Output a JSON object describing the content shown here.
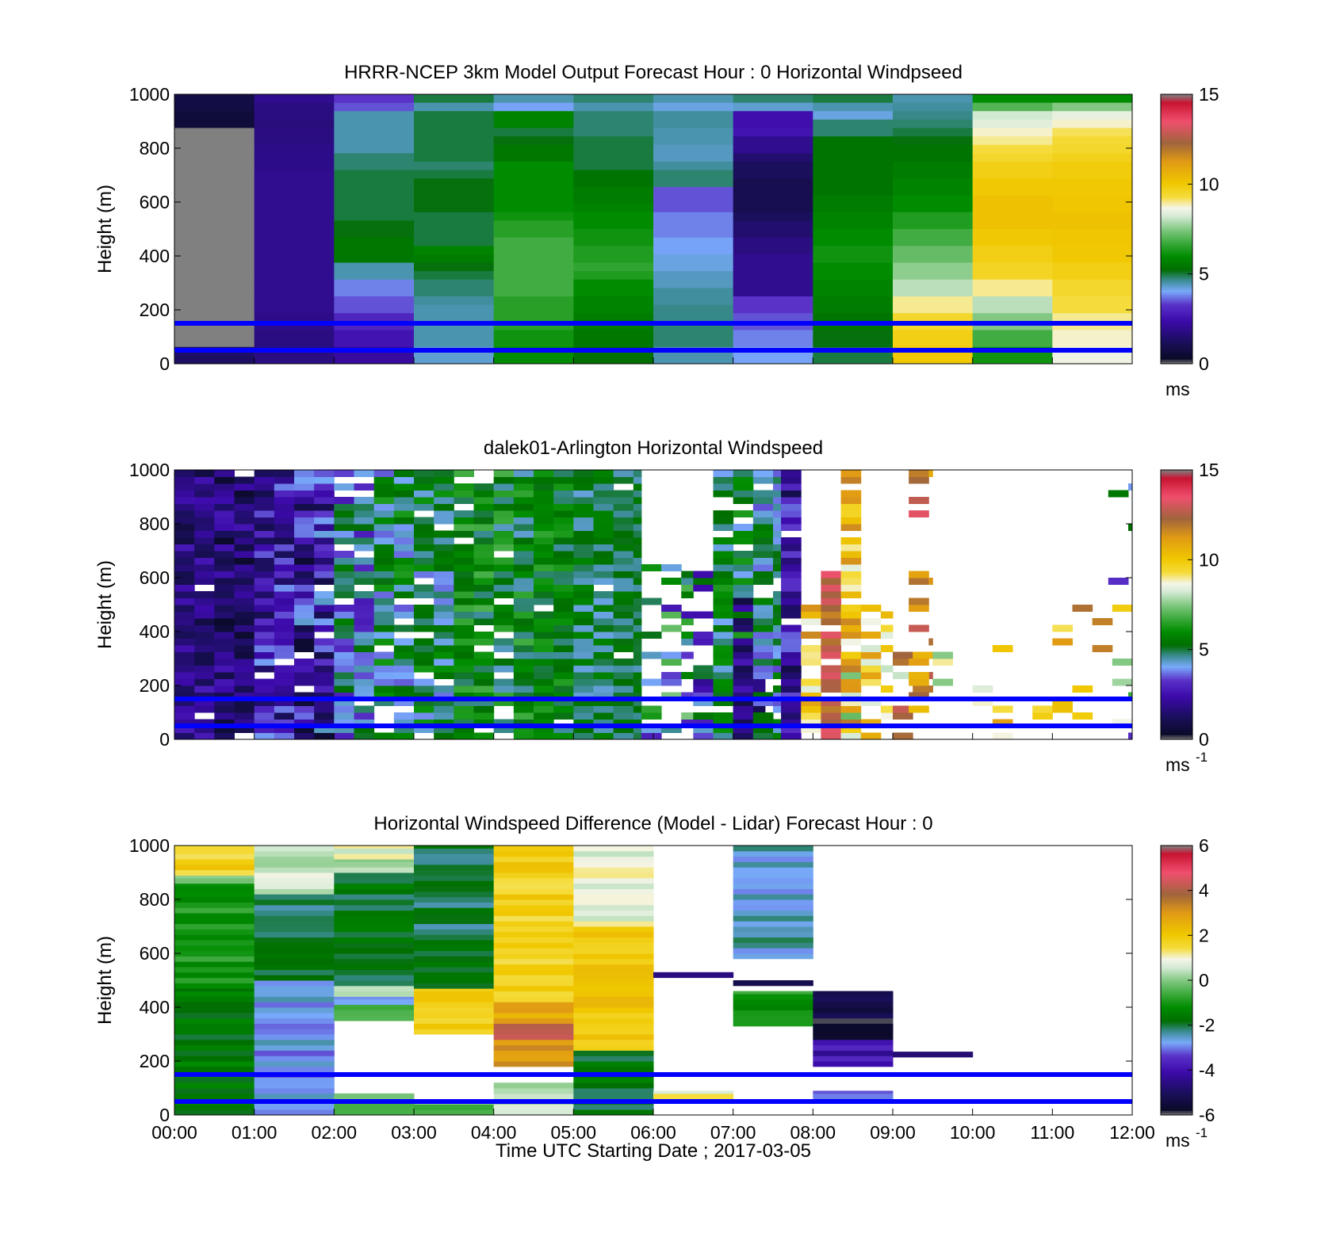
{
  "figure": {
    "xlabel": "Time UTC  Starting Date ; 2017-03-05",
    "x_ticks": [
      "00:00",
      "01:00",
      "02:00",
      "03:00",
      "04:00",
      "05:00",
      "06:00",
      "07:00",
      "08:00",
      "09:00",
      "10:00",
      "11:00",
      "12:00"
    ],
    "y_ticks": [
      "0",
      "200",
      "400",
      "600",
      "800",
      "1000"
    ],
    "reference_lines_m": [
      50,
      150
    ],
    "reference_line_color": "#0000ff"
  },
  "chart_data": [
    {
      "type": "heatmap",
      "title": "HRRR-NCEP 3km Model Output   Forecast Hour : 0 Horizontal Windpseed",
      "ylabel": "Height (m)",
      "xlim": [
        0,
        12
      ],
      "ylim": [
        0,
        1000
      ],
      "colorbar": {
        "min": 0,
        "max": 15,
        "ticks": [
          "0",
          "5",
          "10",
          "15"
        ],
        "unit": "ms",
        "unit_sup": ""
      },
      "data_resolution": "hourly model profiles, ~30 m levels",
      "hourly_speed_ms": [
        [
          0.8,
          0.8,
          0.6,
          0.6,
          0.8,
          0.0,
          0.0,
          0.0,
          0.0,
          0.0,
          0.0,
          0.0,
          0.0,
          0.0,
          0.0,
          0.0,
          0.0,
          0.0,
          0.0,
          0.0,
          0.0,
          0.0,
          0.0,
          0.0,
          0.0,
          0.0,
          0.0,
          0.0,
          0.0,
          0.0,
          1.4,
          1.3
        ],
        [
          2.0,
          1.8,
          1.8,
          1.7,
          1.8,
          1.8,
          1.9,
          1.9,
          1.9,
          2.0,
          2.0,
          2.0,
          2.0,
          2.0,
          2.0,
          2.0,
          2.0,
          2.0,
          2.0,
          2.0,
          2.0,
          2.0,
          2.0,
          2.0,
          2.0,
          2.0,
          1.9,
          1.9,
          1.8,
          1.8,
          1.8,
          1.8
        ],
        [
          3.3,
          3.5,
          4.5,
          4.5,
          4.5,
          4.5,
          4.5,
          4.8,
          4.8,
          5.0,
          5.0,
          5.0,
          5.0,
          5.0,
          5.0,
          5.2,
          5.2,
          5.5,
          5.5,
          5.5,
          4.5,
          4.5,
          3.8,
          3.8,
          3.5,
          3.5,
          3.0,
          3.0,
          2.6,
          2.6,
          2.2,
          2.2
        ],
        [
          5.0,
          4.5,
          5.0,
          5.0,
          5.0,
          5.0,
          5.0,
          5.0,
          4.8,
          5.0,
          5.2,
          5.2,
          5.2,
          5.2,
          5.0,
          5.0,
          5.0,
          5.0,
          5.8,
          5.6,
          5.2,
          5.0,
          4.8,
          4.8,
          4.6,
          4.5,
          4.5,
          4.5,
          4.5,
          4.5,
          4.3,
          4.3
        ],
        [
          4.5,
          4.0,
          5.8,
          5.8,
          5.0,
          5.2,
          5.5,
          5.5,
          6.0,
          6.0,
          6.0,
          6.0,
          6.0,
          6.0,
          6.2,
          6.5,
          6.5,
          6.8,
          6.8,
          6.8,
          6.8,
          6.8,
          6.8,
          6.8,
          6.5,
          6.5,
          6.5,
          6.5,
          6.2,
          6.2,
          6.0,
          6.0
        ],
        [
          4.8,
          4.5,
          4.8,
          4.8,
          4.8,
          5.0,
          5.0,
          5.0,
          5.0,
          5.4,
          5.4,
          5.6,
          5.6,
          5.8,
          6.0,
          6.0,
          6.2,
          6.2,
          6.4,
          6.4,
          6.6,
          6.4,
          6.0,
          6.0,
          5.8,
          5.8,
          5.6,
          5.6,
          5.5,
          5.5,
          5.3,
          5.3
        ],
        [
          4.5,
          4.2,
          4.6,
          4.6,
          4.5,
          4.5,
          4.4,
          4.4,
          4.6,
          4.8,
          4.8,
          3.5,
          3.5,
          3.5,
          3.8,
          3.8,
          3.8,
          4.0,
          4.0,
          4.2,
          4.2,
          4.4,
          4.4,
          4.6,
          4.6,
          4.7,
          4.7,
          4.8,
          4.8,
          4.8,
          4.5,
          4.5
        ],
        [
          4.8,
          4.3,
          2.5,
          2.5,
          2.6,
          2.0,
          2.0,
          1.5,
          1.2,
          1.2,
          1.0,
          1.0,
          1.0,
          1.0,
          1.2,
          1.5,
          1.5,
          1.8,
          1.8,
          2.0,
          2.0,
          2.0,
          2.0,
          2.0,
          3.3,
          3.3,
          3.5,
          3.5,
          3.8,
          3.8,
          4.0,
          4.0
        ],
        [
          5.0,
          4.5,
          4.2,
          4.8,
          4.8,
          5.4,
          5.4,
          5.4,
          5.4,
          5.4,
          5.4,
          5.4,
          5.6,
          5.6,
          5.8,
          5.8,
          6.0,
          6.0,
          6.2,
          6.2,
          6.0,
          6.0,
          5.8,
          5.8,
          5.6,
          5.6,
          5.4,
          5.4,
          5.2,
          5.2,
          5.0,
          5.0
        ],
        [
          4.5,
          4.6,
          4.7,
          4.8,
          5.0,
          5.2,
          5.4,
          5.4,
          5.6,
          5.6,
          5.8,
          5.8,
          6.0,
          6.0,
          6.4,
          6.4,
          6.8,
          6.8,
          7.2,
          7.2,
          7.6,
          7.6,
          8.0,
          8.0,
          9.0,
          9.0,
          9.5,
          9.5,
          9.8,
          9.8,
          10.0,
          10.0
        ],
        [
          6.0,
          7.0,
          8.2,
          8.4,
          8.8,
          9.0,
          9.3,
          9.5,
          9.8,
          9.8,
          10.0,
          10.0,
          10.2,
          10.2,
          10.2,
          10.2,
          10.0,
          10.0,
          9.8,
          9.8,
          9.6,
          9.6,
          9.0,
          9.0,
          8.0,
          8.0,
          7.5,
          7.5,
          6.8,
          6.8,
          6.2,
          6.2
        ],
        [
          6.0,
          7.5,
          8.5,
          8.8,
          9.2,
          9.4,
          9.5,
          9.7,
          9.9,
          9.9,
          10.0,
          10.0,
          10.1,
          10.1,
          10.2,
          10.2,
          10.1,
          10.1,
          10.0,
          10.0,
          9.8,
          9.8,
          9.5,
          9.5,
          9.3,
          9.3,
          9.0,
          9.0,
          8.8,
          8.8,
          8.6,
          8.6
        ]
      ],
      "no_data_hour_00_m": [
        350,
        900
      ]
    },
    {
      "type": "heatmap",
      "title": "dalek01-Arlington  Horizontal Windspeed",
      "ylabel": "Height (m)",
      "xlim": [
        0,
        12
      ],
      "ylim": [
        0,
        1000
      ],
      "colorbar": {
        "min": 0,
        "max": 15,
        "ticks": [
          "0",
          "5",
          "10",
          "15"
        ],
        "unit": "ms",
        "unit_sup": "-1"
      },
      "data_resolution": "lidar profiles every ~15 min, ~25 m gates",
      "segments": [
        {
          "t0": 0.0,
          "t1": 0.5,
          "hmax": 1000,
          "base": 1.8,
          "var": 1.0,
          "gap": 0.02
        },
        {
          "t0": 0.5,
          "t1": 1.0,
          "hmax": 1000,
          "base": 1.5,
          "var": 1.2,
          "gap": 0.04
        },
        {
          "t0": 1.0,
          "t1": 1.5,
          "hmax": 1000,
          "base": 2.5,
          "var": 1.5,
          "gap": 0.04
        },
        {
          "t0": 1.5,
          "t1": 2.0,
          "hmax": 1000,
          "base": 2.4,
          "var": 2.0,
          "gap": 0.05
        },
        {
          "t0": 2.0,
          "t1": 2.5,
          "hmax": 1000,
          "base": 4.2,
          "var": 1.5,
          "gap": 0.08
        },
        {
          "t0": 2.5,
          "t1": 3.0,
          "hmax": 1000,
          "base": 5.0,
          "var": 1.5,
          "gap": 0.1
        },
        {
          "t0": 3.0,
          "t1": 3.5,
          "hmax": 1000,
          "base": 5.0,
          "var": 1.3,
          "gap": 0.08
        },
        {
          "t0": 3.5,
          "t1": 4.0,
          "hmax": 1000,
          "base": 5.8,
          "var": 1.2,
          "gap": 0.08
        },
        {
          "t0": 4.0,
          "t1": 4.5,
          "hmax": 1000,
          "base": 5.6,
          "var": 1.3,
          "gap": 0.08
        },
        {
          "t0": 4.5,
          "t1": 5.0,
          "hmax": 1000,
          "base": 5.6,
          "var": 1.0,
          "gap": 0.05
        },
        {
          "t0": 5.0,
          "t1": 5.5,
          "hmax": 1000,
          "base": 5.0,
          "var": 0.8,
          "gap": 0.04
        },
        {
          "t0": 5.5,
          "t1": 5.85,
          "hmax": 1000,
          "base": 5.0,
          "var": 0.6,
          "gap": 0.03
        },
        {
          "t0": 5.85,
          "t1": 6.5,
          "hmax": 650,
          "base": 5.0,
          "var": 2.5,
          "gap": 0.55
        },
        {
          "t0": 6.5,
          "t1": 6.75,
          "hmax": 620,
          "base": 4.0,
          "var": 2.0,
          "gap": 0.35
        },
        {
          "t0": 6.75,
          "t1": 7.25,
          "hmax": 1000,
          "base": 5.2,
          "var": 1.2,
          "gap": 0.08
        },
        {
          "t0": 7.0,
          "t1": 7.4,
          "hmax": 520,
          "base": 1.8,
          "var": 1.0,
          "gap": 0.08
        },
        {
          "t0": 7.25,
          "t1": 7.6,
          "hmax": 1000,
          "base": 4.6,
          "var": 1.2,
          "gap": 0.1
        },
        {
          "t0": 7.6,
          "t1": 7.85,
          "hmax": 1000,
          "base": 2.2,
          "var": 1.5,
          "gap": 0.08
        },
        {
          "t0": 7.85,
          "t1": 8.1,
          "hmax": 500,
          "base": 10.0,
          "var": 1.8,
          "gap": 0.25
        },
        {
          "t0": 8.1,
          "t1": 8.35,
          "hmax": 620,
          "base": 12.5,
          "var": 1.0,
          "gap": 0.1
        },
        {
          "t0": 8.35,
          "t1": 8.6,
          "hmax": 1000,
          "base": 9.5,
          "var": 2.5,
          "gap": 0.12
        },
        {
          "t0": 8.6,
          "t1": 9.0,
          "hmax": 520,
          "base": 10.0,
          "var": 2.0,
          "gap": 0.55
        },
        {
          "t0": 9.0,
          "t1": 9.5,
          "hmax": 320,
          "base": 10.5,
          "var": 2.5,
          "gap": 0.75
        },
        {
          "t0": 9.2,
          "t1": 9.5,
          "hmax": 1000,
          "base": 11.8,
          "var": 1.5,
          "gap": 0.8
        },
        {
          "t0": 9.5,
          "t1": 12.0,
          "hmax": 480,
          "base": 10.0,
          "var": 2.5,
          "gap": 0.9
        },
        {
          "t0": 11.7,
          "t1": 12.0,
          "hmax": 1000,
          "base": 5.0,
          "var": 3.0,
          "gap": 0.93
        }
      ]
    },
    {
      "type": "heatmap",
      "title": "Horizontal Windspeed Difference (Model - Lidar) Forecast Hour : 0",
      "ylabel": "Height (m)",
      "xlim": [
        0,
        12
      ],
      "ylim": [
        0,
        1000
      ],
      "colorbar": {
        "min": -6,
        "max": 6,
        "ticks": [
          "-6",
          "-4",
          "-2",
          "0",
          "2",
          "4",
          "6"
        ],
        "unit": "ms",
        "unit_sup": "-1"
      },
      "data_resolution": "hourly difference profiles, ~10 m levels",
      "hourly_difference_ms": [
        {
          "hour": 0,
          "bands": [
            [
              0,
              470,
              -1.6
            ],
            [
              470,
              860,
              -1.0
            ],
            [
              860,
              890,
              0.2
            ],
            [
              890,
              1000,
              1.8
            ]
          ]
        },
        {
          "hour": 1,
          "bands": [
            [
              0,
              500,
              -2.8
            ],
            [
              500,
              820,
              -2.0
            ],
            [
              820,
              1000,
              0.5
            ]
          ]
        },
        {
          "hour": 2,
          "bands": [
            [
              0,
              60,
              -0.6
            ],
            [
              60,
              80,
              0.2
            ],
            [
              350,
              410,
              -0.8
            ],
            [
              410,
              440,
              -2.5
            ],
            [
              440,
              480,
              0.0
            ],
            [
              480,
              900,
              -1.8
            ],
            [
              900,
              950,
              0.2
            ],
            [
              950,
              1000,
              0.8
            ]
          ]
        },
        {
          "hour": 3,
          "bands": [
            [
              0,
              40,
              -0.5
            ],
            [
              300,
              400,
              1.8
            ],
            [
              400,
              470,
              2.2
            ],
            [
              470,
              1000,
              -2.0
            ]
          ]
        },
        {
          "hour": 4,
          "bands": [
            [
              0,
              120,
              0.5
            ],
            [
              180,
              280,
              3.0
            ],
            [
              280,
              340,
              4.0
            ],
            [
              340,
              420,
              2.6
            ],
            [
              420,
              1000,
              1.8
            ]
          ]
        },
        {
          "hour": 5,
          "bands": [
            [
              0,
              240,
              -1.8
            ],
            [
              240,
              700,
              2.0
            ],
            [
              700,
              1000,
              0.8
            ]
          ]
        },
        {
          "hour": 6,
          "bands": [
            [
              60,
              90,
              1.0
            ],
            [
              510,
              530,
              -5.0
            ]
          ]
        },
        {
          "hour": 7,
          "bands": [
            [
              330,
              460,
              -1.0
            ],
            [
              480,
              500,
              -5.5
            ],
            [
              580,
              1000,
              -2.5
            ]
          ]
        },
        {
          "hour": 8,
          "bands": [
            [
              60,
              90,
              -3.0
            ],
            [
              180,
              280,
              -4.0
            ],
            [
              280,
              360,
              -6.0
            ],
            [
              360,
              460,
              -5.5
            ]
          ]
        },
        {
          "hour": 9,
          "bands": [
            [
              215,
              235,
              -5.0
            ]
          ]
        }
      ]
    }
  ]
}
